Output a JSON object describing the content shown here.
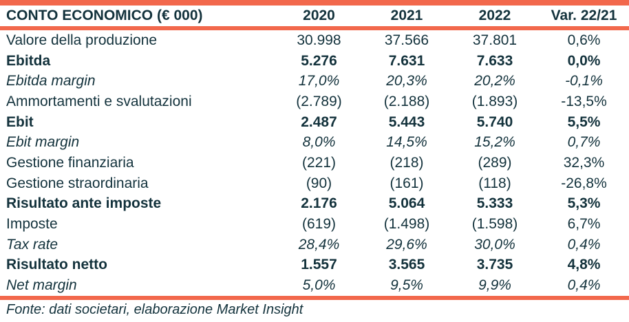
{
  "colors": {
    "accent_bar": "#f2684c",
    "text": "#13323c",
    "background": "#ffffff"
  },
  "table": {
    "title": "CONTO ECONOMICO (€ 000)",
    "columns": [
      "2020",
      "2021",
      "2022",
      "Var. 22/21"
    ],
    "rows": [
      {
        "label": "Valore della produzione",
        "style": "normal",
        "values": [
          "30.998",
          "37.566",
          "37.801",
          "0,6%"
        ]
      },
      {
        "label": "Ebitda",
        "style": "bold",
        "values": [
          "5.276",
          "7.631",
          "7.633",
          "0,0%"
        ]
      },
      {
        "label": "Ebitda margin",
        "style": "italic",
        "values": [
          "17,0%",
          "20,3%",
          "20,2%",
          "-0,1%"
        ]
      },
      {
        "label": "Ammortamenti e svalutazioni",
        "style": "normal",
        "values": [
          "(2.789)",
          "(2.188)",
          "(1.893)",
          "-13,5%"
        ]
      },
      {
        "label": "Ebit",
        "style": "bold",
        "values": [
          "2.487",
          "5.443",
          "5.740",
          "5,5%"
        ]
      },
      {
        "label": "Ebit margin",
        "style": "italic",
        "values": [
          "8,0%",
          "14,5%",
          "15,2%",
          "0,7%"
        ]
      },
      {
        "label": "Gestione finanziaria",
        "style": "normal",
        "values": [
          "(221)",
          "(218)",
          "(289)",
          "32,3%"
        ]
      },
      {
        "label": "Gestione straordinaria",
        "style": "normal",
        "values": [
          "(90)",
          "(161)",
          "(118)",
          "-26,8%"
        ]
      },
      {
        "label": "Risultato ante imposte",
        "style": "bold",
        "values": [
          "2.176",
          "5.064",
          "5.333",
          "5,3%"
        ]
      },
      {
        "label": "Imposte",
        "style": "normal",
        "values": [
          "(619)",
          "(1.498)",
          "(1.598)",
          "6,7%"
        ]
      },
      {
        "label": "Tax rate",
        "style": "italic",
        "values": [
          "28,4%",
          "29,6%",
          "30,0%",
          "0,4%"
        ]
      },
      {
        "label": "Risultato netto",
        "style": "bold",
        "values": [
          "1.557",
          "3.565",
          "3.735",
          "4,8%"
        ]
      },
      {
        "label": "Net margin",
        "style": "italic",
        "values": [
          "5,0%",
          "9,5%",
          "9,9%",
          "0,4%"
        ]
      }
    ],
    "footer": "Fonte: dati societari, elaborazione Market Insight"
  }
}
